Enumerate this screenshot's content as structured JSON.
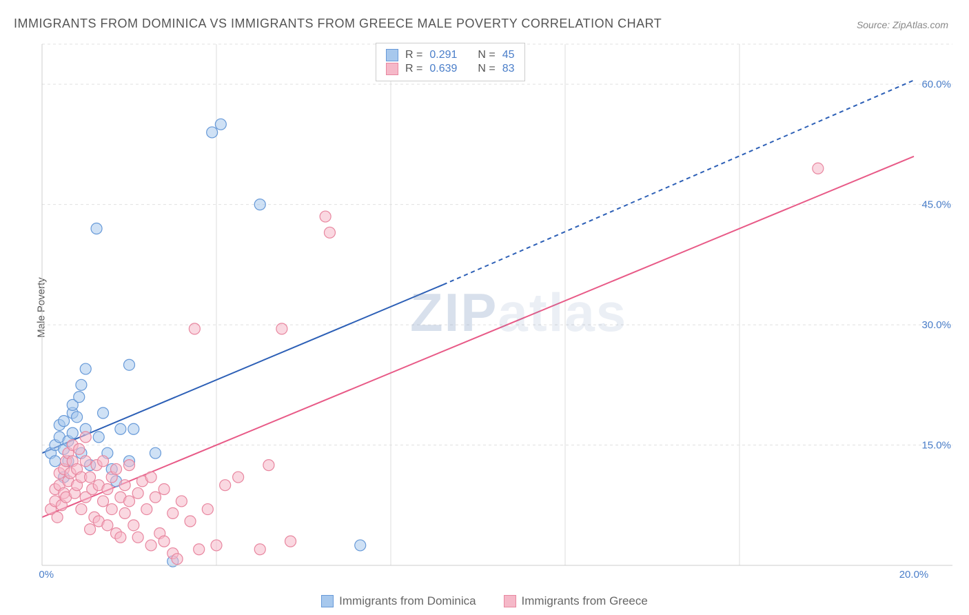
{
  "title": "IMMIGRANTS FROM DOMINICA VS IMMIGRANTS FROM GREECE MALE POVERTY CORRELATION CHART",
  "source": "Source: ZipAtlas.com",
  "ylabel": "Male Poverty",
  "watermark": {
    "zip": "ZIP",
    "atlas": "atlas"
  },
  "chart": {
    "type": "scatter",
    "xlim": [
      0,
      20
    ],
    "ylim": [
      0,
      65
    ],
    "xticks": [
      0,
      20
    ],
    "xtick_labels": [
      "0.0%",
      "20.0%"
    ],
    "yticks": [
      15,
      30,
      45,
      60
    ],
    "ytick_labels": [
      "15.0%",
      "30.0%",
      "45.0%",
      "60.0%"
    ],
    "grid_color": "#e0e0e0",
    "background_color": "#ffffff",
    "marker_radius": 8,
    "marker_opacity": 0.55,
    "series": [
      {
        "name": "Immigrants from Dominica",
        "color_fill": "#a7c8ed",
        "color_stroke": "#6699d8",
        "r_value": "0.291",
        "n_value": "45",
        "trend": {
          "x1": 0,
          "y1": 14,
          "x2": 9.2,
          "y2": 35,
          "x2_dash": 20,
          "y2_dash": 60.5,
          "color": "#2c5fb6",
          "width": 2,
          "dash_after_x": 9.2
        },
        "points": [
          [
            0.2,
            14
          ],
          [
            0.3,
            15
          ],
          [
            0.3,
            13
          ],
          [
            0.4,
            16
          ],
          [
            0.4,
            17.5
          ],
          [
            0.5,
            18
          ],
          [
            0.5,
            14.5
          ],
          [
            0.5,
            11
          ],
          [
            0.6,
            15.5
          ],
          [
            0.6,
            13
          ],
          [
            0.7,
            19
          ],
          [
            0.7,
            16.5
          ],
          [
            0.7,
            20
          ],
          [
            0.8,
            18.5
          ],
          [
            0.85,
            21
          ],
          [
            0.9,
            22.5
          ],
          [
            0.9,
            14
          ],
          [
            1.0,
            24.5
          ],
          [
            1.0,
            17
          ],
          [
            1.1,
            12.5
          ],
          [
            1.25,
            42
          ],
          [
            1.3,
            16
          ],
          [
            1.4,
            19
          ],
          [
            1.5,
            14
          ],
          [
            1.6,
            12
          ],
          [
            1.7,
            10.5
          ],
          [
            1.8,
            17
          ],
          [
            2.0,
            25
          ],
          [
            2.0,
            13
          ],
          [
            2.1,
            17
          ],
          [
            2.6,
            14
          ],
          [
            3.0,
            0.5
          ],
          [
            3.9,
            54
          ],
          [
            4.1,
            55
          ],
          [
            5.0,
            45
          ],
          [
            7.3,
            2.5
          ]
        ]
      },
      {
        "name": "Immigrants from Greece",
        "color_fill": "#f5b8c8",
        "color_stroke": "#e8869f",
        "r_value": "0.639",
        "n_value": "83",
        "trend": {
          "x1": 0,
          "y1": 6,
          "x2": 20,
          "y2": 51,
          "color": "#e85a87",
          "width": 2
        },
        "points": [
          [
            0.2,
            7
          ],
          [
            0.3,
            8
          ],
          [
            0.3,
            9.5
          ],
          [
            0.35,
            6
          ],
          [
            0.4,
            10
          ],
          [
            0.4,
            11.5
          ],
          [
            0.45,
            7.5
          ],
          [
            0.5,
            12
          ],
          [
            0.5,
            9
          ],
          [
            0.55,
            13
          ],
          [
            0.55,
            8.5
          ],
          [
            0.6,
            14
          ],
          [
            0.6,
            10.5
          ],
          [
            0.65,
            11.5
          ],
          [
            0.7,
            13
          ],
          [
            0.7,
            15
          ],
          [
            0.75,
            9
          ],
          [
            0.8,
            12
          ],
          [
            0.8,
            10
          ],
          [
            0.85,
            14.5
          ],
          [
            0.9,
            11
          ],
          [
            0.9,
            7
          ],
          [
            1.0,
            16
          ],
          [
            1.0,
            13
          ],
          [
            1.0,
            8.5
          ],
          [
            1.1,
            4.5
          ],
          [
            1.1,
            11
          ],
          [
            1.15,
            9.5
          ],
          [
            1.2,
            6
          ],
          [
            1.25,
            12.5
          ],
          [
            1.3,
            10
          ],
          [
            1.3,
            5.5
          ],
          [
            1.4,
            8
          ],
          [
            1.4,
            13
          ],
          [
            1.5,
            5
          ],
          [
            1.5,
            9.5
          ],
          [
            1.6,
            11
          ],
          [
            1.6,
            7
          ],
          [
            1.7,
            12
          ],
          [
            1.7,
            4
          ],
          [
            1.8,
            8.5
          ],
          [
            1.8,
            3.5
          ],
          [
            1.9,
            10
          ],
          [
            1.9,
            6.5
          ],
          [
            2.0,
            12.5
          ],
          [
            2.0,
            8
          ],
          [
            2.1,
            5
          ],
          [
            2.2,
            9
          ],
          [
            2.2,
            3.5
          ],
          [
            2.3,
            10.5
          ],
          [
            2.4,
            7
          ],
          [
            2.5,
            11
          ],
          [
            2.5,
            2.5
          ],
          [
            2.6,
            8.5
          ],
          [
            2.7,
            4
          ],
          [
            2.8,
            3
          ],
          [
            2.8,
            9.5
          ],
          [
            3.0,
            1.5
          ],
          [
            3.0,
            6.5
          ],
          [
            3.1,
            0.8
          ],
          [
            3.2,
            8
          ],
          [
            3.4,
            5.5
          ],
          [
            3.5,
            29.5
          ],
          [
            3.6,
            2
          ],
          [
            3.8,
            7
          ],
          [
            4.0,
            2.5
          ],
          [
            4.2,
            10
          ],
          [
            4.5,
            11
          ],
          [
            5.0,
            2
          ],
          [
            5.2,
            12.5
          ],
          [
            5.5,
            29.5
          ],
          [
            5.7,
            3
          ],
          [
            6.5,
            43.5
          ],
          [
            6.6,
            41.5
          ],
          [
            17.8,
            49.5
          ]
        ]
      }
    ],
    "correlation_legend": {
      "r_label": "R  =",
      "n_label": "N  ="
    },
    "bottom_legend_items": [
      "Immigrants from Dominica",
      "Immigrants from Greece"
    ]
  }
}
